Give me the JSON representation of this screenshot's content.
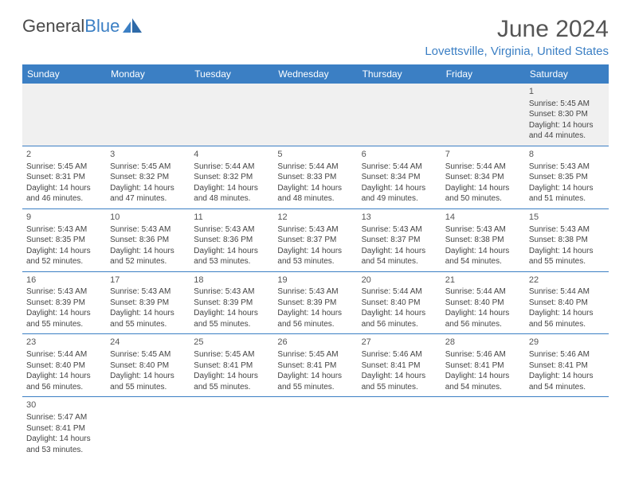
{
  "logo": {
    "text1": "General",
    "text2": "Blue"
  },
  "title": "June 2024",
  "location": "Lovettsville, Virginia, United States",
  "colors": {
    "header_bg": "#3b7fc4",
    "header_text": "#ffffff",
    "row_border": "#3b7fc4",
    "empty_bg": "#f0f0f0",
    "text": "#444444",
    "title": "#555555"
  },
  "weekdays": [
    "Sunday",
    "Monday",
    "Tuesday",
    "Wednesday",
    "Thursday",
    "Friday",
    "Saturday"
  ],
  "labels": {
    "sunrise": "Sunrise:",
    "sunset": "Sunset:",
    "daylight": "Daylight:"
  },
  "first_weekday_index": 6,
  "days": [
    {
      "n": 1,
      "sunrise": "5:45 AM",
      "sunset": "8:30 PM",
      "daylight": "14 hours and 44 minutes."
    },
    {
      "n": 2,
      "sunrise": "5:45 AM",
      "sunset": "8:31 PM",
      "daylight": "14 hours and 46 minutes."
    },
    {
      "n": 3,
      "sunrise": "5:45 AM",
      "sunset": "8:32 PM",
      "daylight": "14 hours and 47 minutes."
    },
    {
      "n": 4,
      "sunrise": "5:44 AM",
      "sunset": "8:32 PM",
      "daylight": "14 hours and 48 minutes."
    },
    {
      "n": 5,
      "sunrise": "5:44 AM",
      "sunset": "8:33 PM",
      "daylight": "14 hours and 48 minutes."
    },
    {
      "n": 6,
      "sunrise": "5:44 AM",
      "sunset": "8:34 PM",
      "daylight": "14 hours and 49 minutes."
    },
    {
      "n": 7,
      "sunrise": "5:44 AM",
      "sunset": "8:34 PM",
      "daylight": "14 hours and 50 minutes."
    },
    {
      "n": 8,
      "sunrise": "5:43 AM",
      "sunset": "8:35 PM",
      "daylight": "14 hours and 51 minutes."
    },
    {
      "n": 9,
      "sunrise": "5:43 AM",
      "sunset": "8:35 PM",
      "daylight": "14 hours and 52 minutes."
    },
    {
      "n": 10,
      "sunrise": "5:43 AM",
      "sunset": "8:36 PM",
      "daylight": "14 hours and 52 minutes."
    },
    {
      "n": 11,
      "sunrise": "5:43 AM",
      "sunset": "8:36 PM",
      "daylight": "14 hours and 53 minutes."
    },
    {
      "n": 12,
      "sunrise": "5:43 AM",
      "sunset": "8:37 PM",
      "daylight": "14 hours and 53 minutes."
    },
    {
      "n": 13,
      "sunrise": "5:43 AM",
      "sunset": "8:37 PM",
      "daylight": "14 hours and 54 minutes."
    },
    {
      "n": 14,
      "sunrise": "5:43 AM",
      "sunset": "8:38 PM",
      "daylight": "14 hours and 54 minutes."
    },
    {
      "n": 15,
      "sunrise": "5:43 AM",
      "sunset": "8:38 PM",
      "daylight": "14 hours and 55 minutes."
    },
    {
      "n": 16,
      "sunrise": "5:43 AM",
      "sunset": "8:39 PM",
      "daylight": "14 hours and 55 minutes."
    },
    {
      "n": 17,
      "sunrise": "5:43 AM",
      "sunset": "8:39 PM",
      "daylight": "14 hours and 55 minutes."
    },
    {
      "n": 18,
      "sunrise": "5:43 AM",
      "sunset": "8:39 PM",
      "daylight": "14 hours and 55 minutes."
    },
    {
      "n": 19,
      "sunrise": "5:43 AM",
      "sunset": "8:39 PM",
      "daylight": "14 hours and 56 minutes."
    },
    {
      "n": 20,
      "sunrise": "5:44 AM",
      "sunset": "8:40 PM",
      "daylight": "14 hours and 56 minutes."
    },
    {
      "n": 21,
      "sunrise": "5:44 AM",
      "sunset": "8:40 PM",
      "daylight": "14 hours and 56 minutes."
    },
    {
      "n": 22,
      "sunrise": "5:44 AM",
      "sunset": "8:40 PM",
      "daylight": "14 hours and 56 minutes."
    },
    {
      "n": 23,
      "sunrise": "5:44 AM",
      "sunset": "8:40 PM",
      "daylight": "14 hours and 56 minutes."
    },
    {
      "n": 24,
      "sunrise": "5:45 AM",
      "sunset": "8:40 PM",
      "daylight": "14 hours and 55 minutes."
    },
    {
      "n": 25,
      "sunrise": "5:45 AM",
      "sunset": "8:41 PM",
      "daylight": "14 hours and 55 minutes."
    },
    {
      "n": 26,
      "sunrise": "5:45 AM",
      "sunset": "8:41 PM",
      "daylight": "14 hours and 55 minutes."
    },
    {
      "n": 27,
      "sunrise": "5:46 AM",
      "sunset": "8:41 PM",
      "daylight": "14 hours and 55 minutes."
    },
    {
      "n": 28,
      "sunrise": "5:46 AM",
      "sunset": "8:41 PM",
      "daylight": "14 hours and 54 minutes."
    },
    {
      "n": 29,
      "sunrise": "5:46 AM",
      "sunset": "8:41 PM",
      "daylight": "14 hours and 54 minutes."
    },
    {
      "n": 30,
      "sunrise": "5:47 AM",
      "sunset": "8:41 PM",
      "daylight": "14 hours and 53 minutes."
    }
  ]
}
